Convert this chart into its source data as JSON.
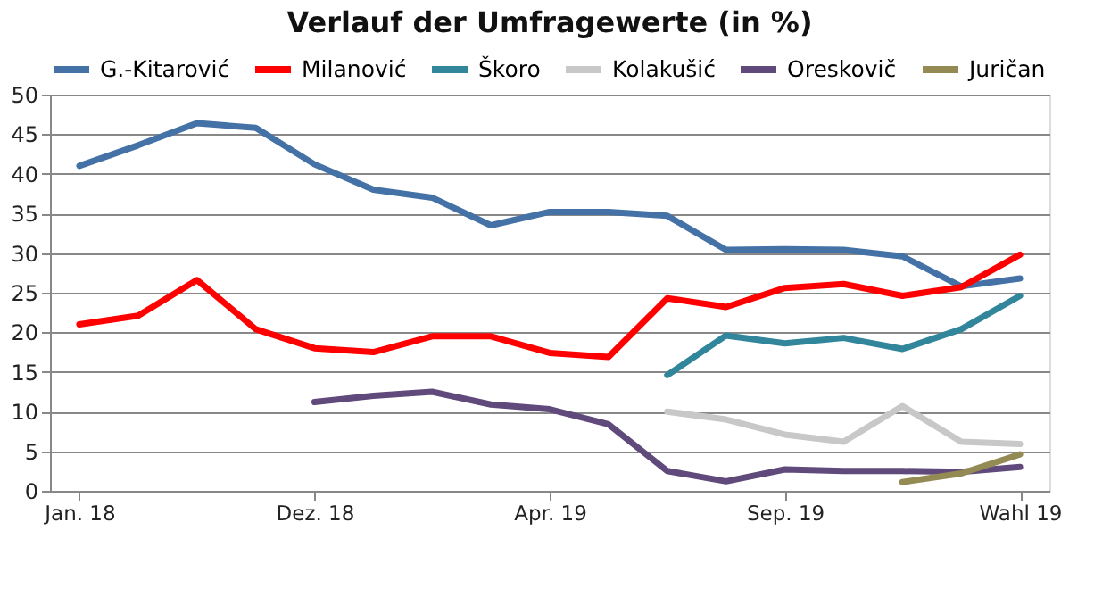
{
  "chart_data": {
    "type": "line",
    "title": "Verlauf der Umfragewerte (in %)",
    "categories": [
      "Jan. 18",
      null,
      null,
      null,
      "Dez. 18",
      null,
      null,
      null,
      "Apr. 19",
      null,
      null,
      null,
      "Sep. 19",
      null,
      null,
      null,
      "Wahl 19"
    ],
    "series": [
      {
        "name": "G.-Kitarović",
        "color": "#4472a6",
        "values": [
          41.0,
          43.6,
          46.4,
          45.8,
          41.2,
          38.0,
          37.0,
          33.5,
          35.2,
          35.2,
          34.7,
          30.4,
          30.5,
          30.4,
          29.6,
          25.8,
          26.8
        ]
      },
      {
        "name": "Milanović",
        "color": "#ff0000",
        "values": [
          21.0,
          22.1,
          26.6,
          20.4,
          18.0,
          17.5,
          19.5,
          19.5,
          17.4,
          16.9,
          24.3,
          23.2,
          25.6,
          26.1,
          24.6,
          25.7,
          29.8
        ]
      },
      {
        "name": "Škoro",
        "color": "#31869b",
        "values": [
          null,
          null,
          null,
          null,
          null,
          null,
          null,
          null,
          null,
          null,
          14.6,
          19.6,
          18.6,
          19.3,
          17.9,
          20.4,
          24.6
        ]
      },
      {
        "name": "Kolakušić",
        "color": "#c8c8c8",
        "values": [
          null,
          null,
          null,
          null,
          null,
          null,
          null,
          null,
          null,
          null,
          10.0,
          9.0,
          7.1,
          6.2,
          10.7,
          6.2,
          5.9
        ]
      },
      {
        "name": "Oreskovič",
        "color": "#5f4a7b",
        "values": [
          null,
          null,
          null,
          null,
          11.2,
          12.0,
          12.5,
          10.9,
          10.3,
          8.4,
          2.5,
          1.2,
          2.7,
          2.5,
          2.5,
          2.4,
          3.0
        ]
      },
      {
        "name": "Juričan",
        "color": "#948a54",
        "values": [
          null,
          null,
          null,
          null,
          null,
          null,
          null,
          null,
          null,
          null,
          null,
          null,
          null,
          null,
          1.1,
          2.2,
          4.6
        ]
      }
    ],
    "ylim": [
      0,
      50
    ],
    "yticks": [
      0,
      5,
      10,
      15,
      20,
      25,
      30,
      35,
      40,
      45,
      50
    ],
    "grid": "y",
    "legend": "top",
    "marker": "none",
    "line_style": "solid"
  }
}
